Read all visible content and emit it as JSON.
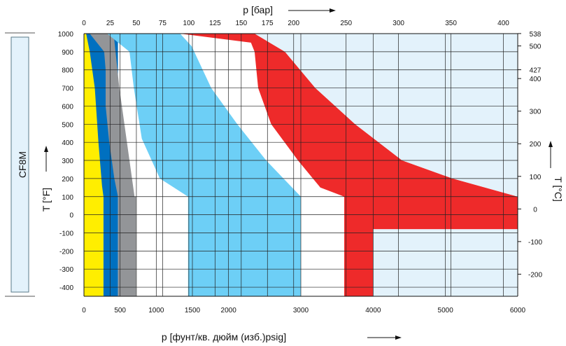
{
  "chart_data": {
    "type": "area",
    "material_label": "CF8M",
    "top_axis_title": "p [бар]",
    "bottom_axis_title": "p [фунт/кв. дюйм (изб.)psig]",
    "left_axis_title": "T [°F]",
    "right_axis_title": "T [°C]",
    "y_ticks_F": [
      "1000",
      "900",
      "800",
      "700",
      "600",
      "500",
      "400",
      "300",
      "200",
      "100",
      "0",
      "-100",
      "-200",
      "-300",
      "-400"
    ],
    "y_ticks_C": [
      "538",
      "500",
      "427",
      "400",
      "300",
      "200",
      "100",
      "0",
      "-100",
      "-200"
    ],
    "top_ticks_bar": [
      "0",
      "25",
      "50",
      "75",
      "100",
      "125",
      "150",
      "175",
      "200",
      "250",
      "300",
      "350",
      "400"
    ],
    "bottom_ticks_psig": [
      "0",
      "500",
      "1000",
      "1500",
      "2000",
      "3000",
      "4000",
      "5000",
      "6000"
    ],
    "x_unit": "psig",
    "y_unit": "°F",
    "xlim": [
      0,
      6000
    ],
    "ylim": [
      -450,
      1000
    ],
    "bands": [
      {
        "color": "#ffee00",
        "points": [
          [
            0,
            1000
          ],
          [
            270,
            1000
          ],
          [
            270,
            -450
          ],
          [
            0,
            -450
          ]
        ]
      },
      {
        "color": "#0070c0",
        "points": [
          [
            0,
            1000
          ],
          [
            470,
            1000
          ],
          [
            470,
            -450
          ],
          [
            270,
            -450
          ],
          [
            270,
            100
          ],
          [
            250,
            160
          ],
          [
            200,
            400
          ],
          [
            150,
            700
          ],
          [
            80,
            900
          ],
          [
            30,
            1000
          ]
        ]
      },
      {
        "color": "#939598",
        "points": [
          [
            80,
            1000
          ],
          [
            410,
            1000
          ],
          [
            490,
            700
          ],
          [
            700,
            100
          ],
          [
            720,
            100
          ],
          [
            720,
            -450
          ],
          [
            470,
            -450
          ],
          [
            470,
            100
          ],
          [
            420,
            200
          ],
          [
            350,
            400
          ],
          [
            300,
            600
          ],
          [
            300,
            800
          ],
          [
            280,
            900
          ]
        ]
      },
      {
        "color": "#6dcff6",
        "points": [
          [
            320,
            1000
          ],
          [
            1330,
            1000
          ],
          [
            1490,
            930
          ],
          [
            1760,
            700
          ],
          [
            2120,
            500
          ],
          [
            2520,
            300
          ],
          [
            3000,
            100
          ],
          [
            3000,
            -450
          ],
          [
            1440,
            -450
          ],
          [
            1440,
            100
          ],
          [
            1050,
            200
          ],
          [
            800,
            420
          ],
          [
            690,
            700
          ],
          [
            630,
            900
          ]
        ]
      },
      {
        "color": "#ee2a2a",
        "points": [
          [
            1330,
            1000
          ],
          [
            2360,
            1000
          ],
          [
            2780,
            900
          ],
          [
            3200,
            700
          ],
          [
            3750,
            500
          ],
          [
            4400,
            300
          ],
          [
            5100,
            200
          ],
          [
            6000,
            100
          ],
          [
            6000,
            -80
          ],
          [
            4000,
            -80
          ],
          [
            4000,
            -450
          ],
          [
            3600,
            -450
          ],
          [
            3600,
            100
          ],
          [
            3270,
            150
          ],
          [
            2960,
            300
          ],
          [
            2590,
            500
          ],
          [
            2410,
            700
          ],
          [
            2360,
            900
          ],
          [
            2310,
            950
          ]
        ]
      },
      {
        "color": "#e3f2fb",
        "points": [
          [
            2360,
            1000
          ],
          [
            6000,
            1000
          ],
          [
            6000,
            100
          ],
          [
            5100,
            200
          ],
          [
            4400,
            300
          ],
          [
            3750,
            500
          ],
          [
            3200,
            700
          ],
          [
            2780,
            900
          ]
        ]
      },
      {
        "color": "#e3f2fb",
        "points": [
          [
            4000,
            -80
          ],
          [
            6000,
            -80
          ],
          [
            6000,
            -450
          ],
          [
            4000,
            -450
          ]
        ]
      }
    ],
    "grid": true,
    "legend": "none"
  },
  "colors": {
    "yellow": "#ffee00",
    "dark_blue": "#0070c0",
    "gray": "#939598",
    "light_blue": "#6dcff6",
    "red": "#ee2a2a",
    "pale_blue": "#e3f2fb"
  }
}
